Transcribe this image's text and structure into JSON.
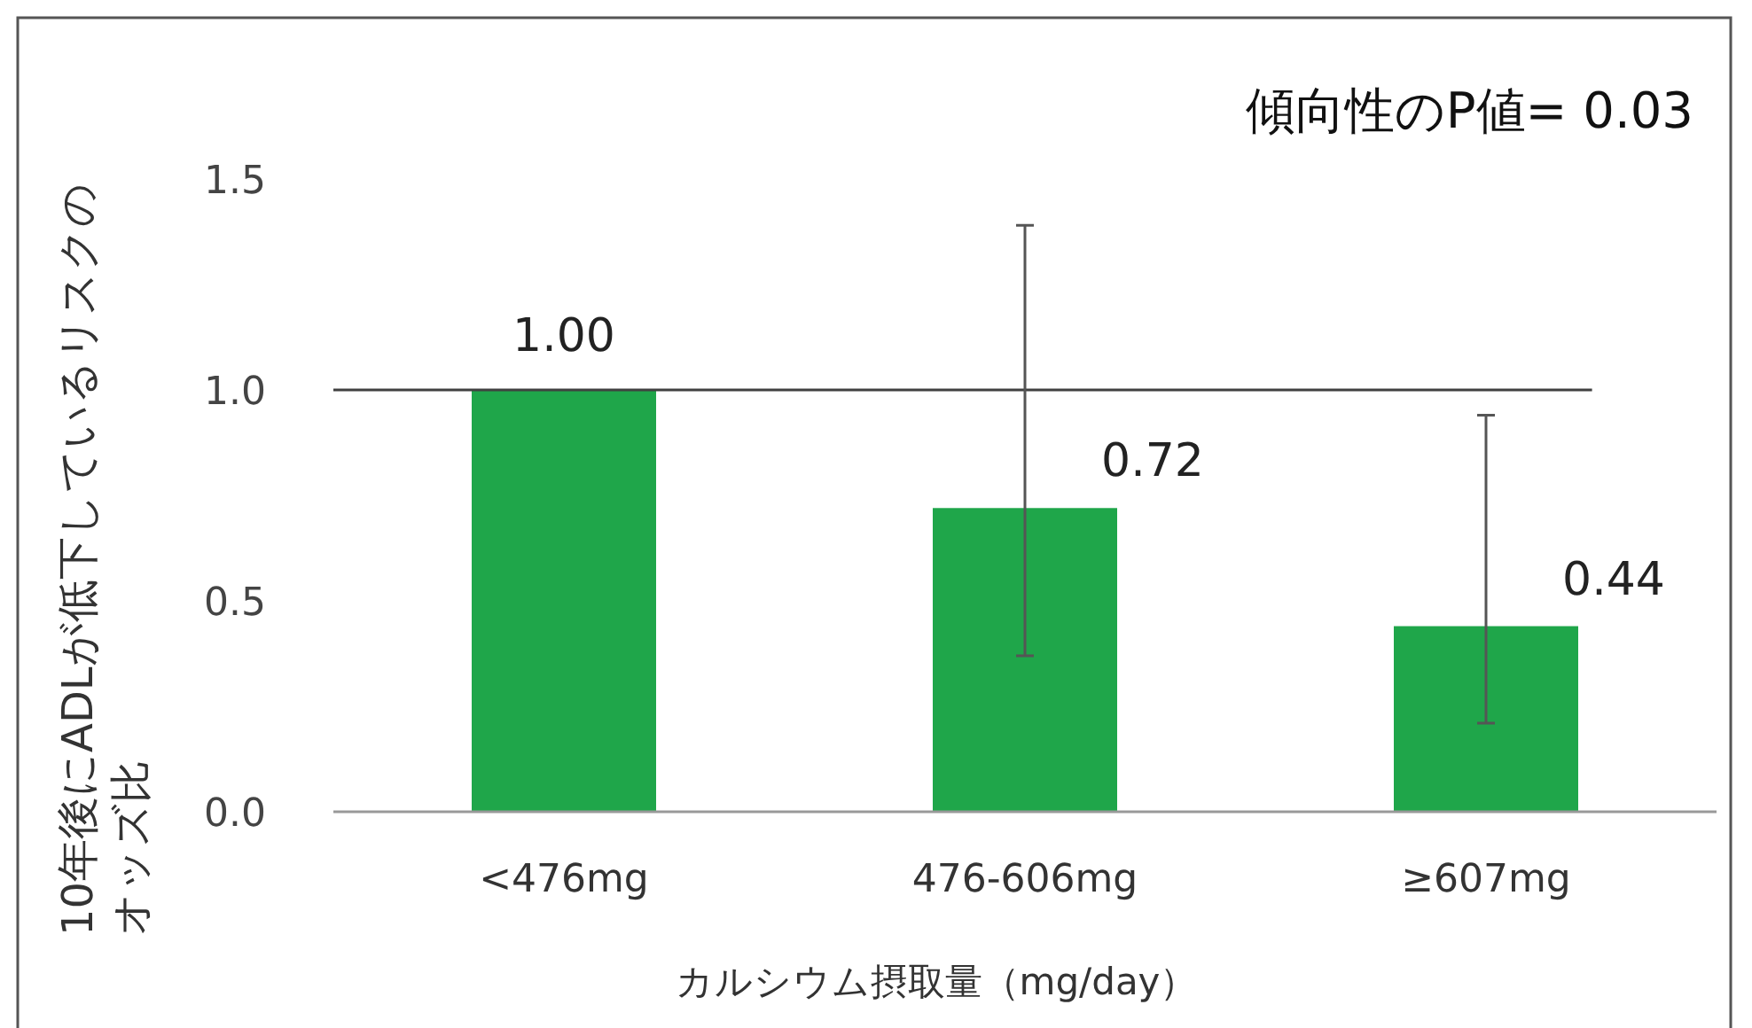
{
  "chart_data": {
    "type": "bar",
    "xlabel": "カルシウム摂取量（mg/day）",
    "ylabel": "10年後にADLが低下しているリスクのオッズ比",
    "categories": [
      "<476mg",
      "476-606mg",
      "≥607mg"
    ],
    "values": [
      1.0,
      0.72,
      0.44
    ],
    "color": "#1fa64a",
    "value_labels": [
      "1.00",
      "0.72",
      "0.44"
    ],
    "errors": [
      null,
      [
        0.37,
        1.39
      ],
      [
        0.21,
        0.94
      ]
    ],
    "ylim": [
      0,
      1.5
    ],
    "yticks": [
      {
        "value": 0,
        "label": "0.0"
      },
      {
        "value": 0.5,
        "label": "0.5"
      },
      {
        "value": 1,
        "label": "1.0"
      },
      {
        "value": 1.5,
        "label": "1.5"
      }
    ],
    "ref_lines": [
      {
        "axis": "y",
        "value": 1,
        "color": "#404040"
      }
    ],
    "annotations": [
      "傾向性のP値= 0.03"
    ]
  }
}
